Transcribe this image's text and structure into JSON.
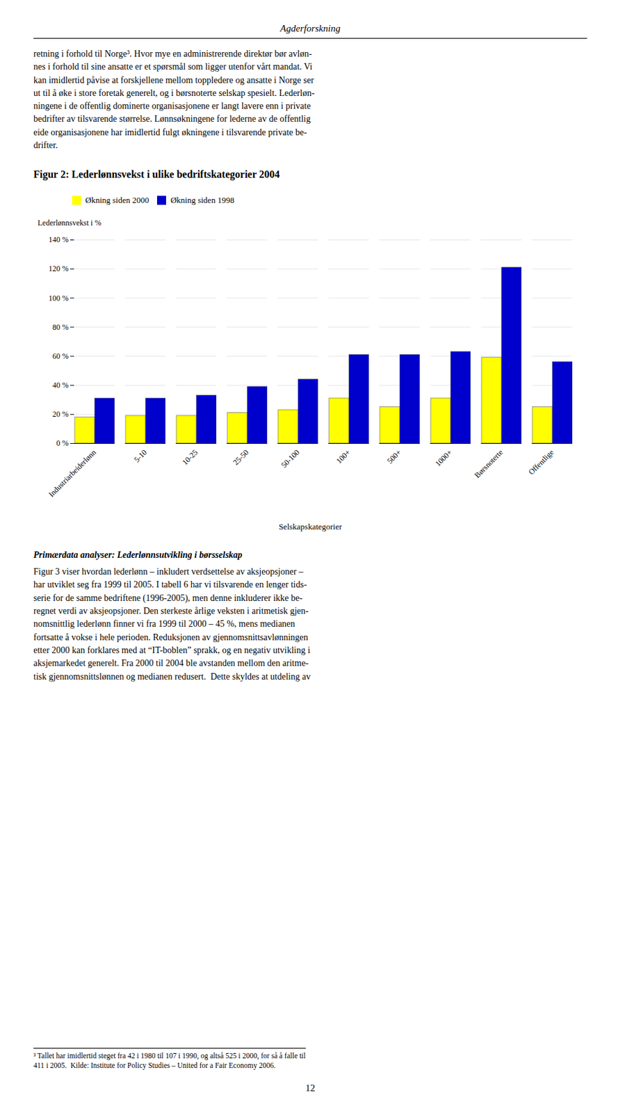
{
  "header": "Agderforskning",
  "text_above": "retning i forhold til Norge³. Hvor mye en administrerende direktør bør avløn-\nnes i forhold til sine ansatte er et spørsmål som ligger utenfor vårt mandat. Vi\nkan imidlertid påvise at forskjellene mellom toppledere og ansatte i Norge ser\nut til å øke i store foretak generelt, og i børsnoterte selskap spesielt. Lederløn-\nningene i de offentlig dominerte organisasjonene er langt lavere enn i private\nbedrifter av tilsvarende størrelse. Lønnsøkningene for lederne av de offentlig\neide organisasjonene har imidlertid fulgt økningene i tilsvarende private be-\ndrifter.",
  "chart_data": {
    "type": "bar",
    "title": "Figur 2: Lederlønnsvekst i ulike bedriftskategorier 2004",
    "xlabel": "Selskapskategorier",
    "ylabel": "Lederlønnsvekst i %",
    "categories": [
      "Industriarbeiderlønn",
      "5-10",
      "10-25",
      "25-50",
      "50-100",
      "100+",
      "500+",
      "1000+",
      "Børsnoterte",
      "Offentlige"
    ],
    "series": [
      {
        "name": "Økning siden 2000",
        "color": "#FFFF00",
        "values": [
          18,
          19,
          19,
          21,
          23,
          31,
          25,
          31,
          59,
          25
        ]
      },
      {
        "name": "Økning siden 1998",
        "color": "#0000CC",
        "values": [
          31,
          31,
          33,
          39,
          44,
          61,
          61,
          63,
          121,
          56
        ]
      }
    ],
    "ylim": [
      0,
      140
    ],
    "yticks": [
      {
        "value": 0,
        "label": "0 %"
      },
      {
        "value": 20,
        "label": "20 %"
      },
      {
        "value": 40,
        "label": "40 %"
      },
      {
        "value": 60,
        "label": "60 %"
      },
      {
        "value": 80,
        "label": "80 %"
      },
      {
        "value": 100,
        "label": "100 %"
      },
      {
        "value": 120,
        "label": "120 %"
      },
      {
        "value": 140,
        "label": "140 %"
      }
    ],
    "grid": true,
    "legend": "upper left"
  },
  "text_below_heading": "Primærdata analyser: Lederlønnsutvikling i børsselskap",
  "text_below": "Figur 3 viser hvordan lederlønn – inkludert verdsettelse av aksjeopsjoner –\nhar utviklet seg fra 1999 til 2005. I tabell 6 har vi tilsvarende en lenger tids-\nserie for de samme bedriftene (1996-2005), men denne inkluderer ikke be-\nregnet verdi av aksjeopsjoner. Den sterkeste årlige veksten i aritmetisk gjen-\nnomsnittlig lederlønn finner vi fra 1999 til 2000 – 45 %, mens medianen\nfortsatte å vokse i hele perioden. Reduksjonen av gjennomsnittsavlønningen\netter 2000 kan forklares med at “IT-boblen” sprakk, og en negativ utvikling i\naksjemarkedet generelt. Fra 2000 til 2004 ble avstanden mellom den aritme-\ntisk gjennomsnittslønnen og medianen redusert.  Dette skyldes at utdeling av",
  "footnote": "³ Tallet har imidlertid steget fra 42 i 1980 til 107 i 1990, og altså 525 i 2000, for så å falle til\n411 i 2005.  Kilde: Institute for Policy Studies – United for a Fair Economy 2006.",
  "page_number": "12"
}
